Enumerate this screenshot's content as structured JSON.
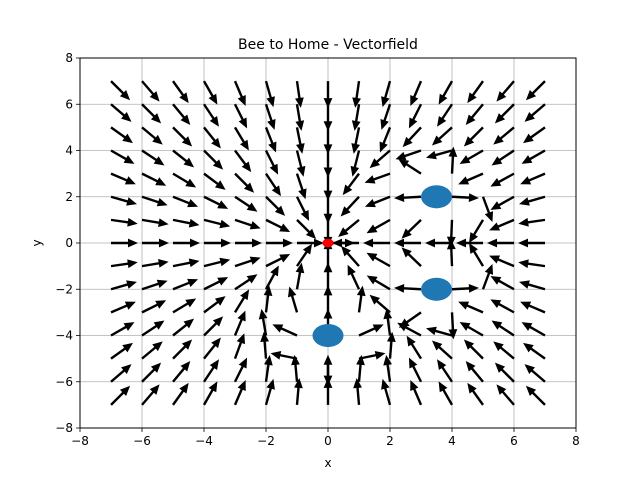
{
  "chart_data": {
    "type": "quiver",
    "title": "Bee to Home - Vectorfield",
    "xlabel": "x",
    "ylabel": "y",
    "xlim": [
      -8,
      8
    ],
    "ylim": [
      -8,
      8
    ],
    "xticks": [
      -8,
      -6,
      -4,
      -2,
      0,
      2,
      4,
      6,
      8
    ],
    "yticks": [
      -8,
      -6,
      -4,
      -2,
      0,
      2,
      4,
      6,
      8
    ],
    "grid": true,
    "grid_points": {
      "x_start": -7,
      "x_end": 7,
      "y_start": -7,
      "y_end": 7,
      "step": 1
    },
    "field_rule": "unit vectors pointing toward the home point and away from the obstacle circles",
    "arrow_color": "#000000",
    "home": {
      "x": 0,
      "y": 0,
      "color": "#ff0000"
    },
    "obstacles": [
      {
        "x": 3.5,
        "y": 2,
        "r": 0.5
      },
      {
        "x": 3.5,
        "y": -2,
        "r": 0.5
      },
      {
        "x": 0,
        "y": -4,
        "r": 0.5
      }
    ],
    "obstacle_color": "#1f77b4"
  }
}
